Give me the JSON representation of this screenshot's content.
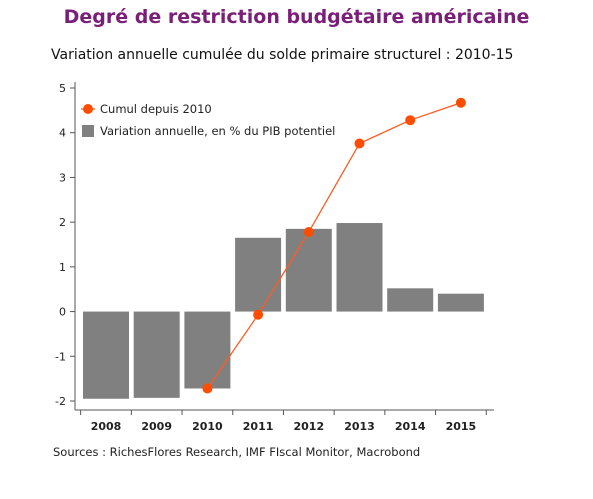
{
  "title": "Degré de restriction budgétaire américaine",
  "subtitle": "Variation annuelle cumulée du solde primaire structurel : 2010-15",
  "source": "Sources : RichesFlores Research, IMF FIscal Monitor, Macrobond",
  "colors": {
    "title": "#7a1f78",
    "bar": "#808080",
    "line": "#ff5a1f",
    "marker": "#ff4d00"
  },
  "chart_data": {
    "type": "bar",
    "categories": [
      "2008",
      "2009",
      "2010",
      "2011",
      "2012",
      "2013",
      "2014",
      "2015"
    ],
    "ylim": [
      -2,
      5
    ],
    "yticks": [
      -2,
      -1,
      0,
      1,
      2,
      3,
      4,
      5
    ],
    "grid": false,
    "legend_position": "top-left",
    "series": [
      {
        "name": "Variation annuelle, en % du PIB potentiel",
        "type": "bar",
        "values": [
          -1.95,
          -1.93,
          -1.72,
          1.65,
          1.85,
          1.98,
          0.52,
          0.4
        ]
      },
      {
        "name": "Cumul depuis 2010",
        "type": "line",
        "values": [
          null,
          null,
          -1.72,
          -0.07,
          1.78,
          3.76,
          4.28,
          4.67
        ]
      }
    ]
  }
}
